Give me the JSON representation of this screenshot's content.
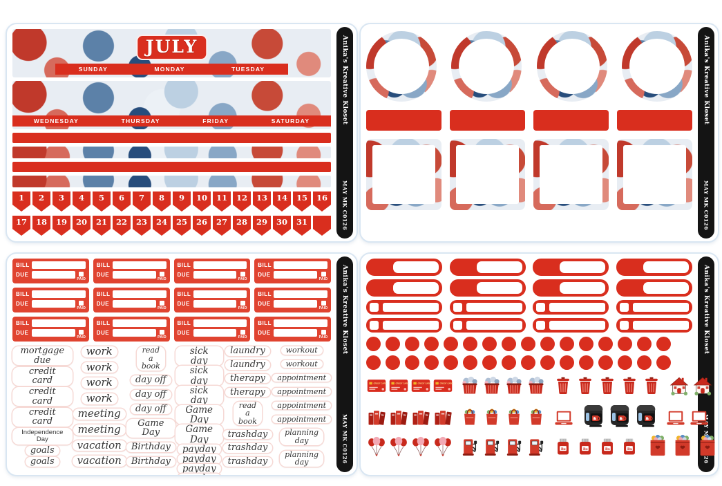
{
  "brand": {
    "shop": "Anika's Kreative Kloset",
    "code": "MAY MK C0126"
  },
  "colors": {
    "accent_red": "#d92e1e",
    "spine_black": "#141414",
    "sheet_border": "#d9e6f2"
  },
  "monthly_sheet": {
    "month_title": "JULY",
    "day_row_1": [
      "SUNDAY",
      "MONDAY",
      "TUESDAY"
    ],
    "day_row_2": [
      "WEDNESDAY",
      "THURSDAY",
      "FRIDAY",
      "SATURDAY"
    ],
    "dates_row_1": [
      "1",
      "2",
      "3",
      "4",
      "5",
      "6",
      "7",
      "8",
      "9",
      "10",
      "11",
      "12",
      "13",
      "14",
      "15",
      "16"
    ],
    "dates_row_2": [
      "17",
      "18",
      "19",
      "20",
      "21",
      "22",
      "23",
      "24",
      "25",
      "26",
      "27",
      "28",
      "29",
      "30",
      "31",
      ""
    ]
  },
  "frames_sheet": {
    "circle_frames": 4,
    "red_label_boxes": 4,
    "square_frames": 4
  },
  "bills_sheet": {
    "bill_label": "BILL",
    "due_label": "DUE",
    "paid_label": "PAID",
    "sticker_count": 12,
    "word_columns": [
      [
        "mortgage due",
        "credit card",
        "credit card",
        "credit card",
        "Independence Day",
        "goals",
        "goals"
      ],
      [
        "work",
        "work",
        "work",
        "work",
        "meeting",
        "meeting",
        "vacation",
        "vacation"
      ],
      [
        "read\na\nbook",
        "day off",
        "day off",
        "day off",
        "Game Day",
        "Birthday",
        "Birthday"
      ],
      [
        "sick day",
        "sick day",
        "sick day",
        "Game Day",
        "Game Day",
        "payday",
        "payday",
        "payday",
        "payday"
      ],
      [
        "laundry",
        "laundry",
        "therapy",
        "therapy",
        "read\na\nbook",
        "trashday",
        "trashday",
        "trashday"
      ],
      [
        "workout",
        "workout",
        "appointment",
        "appointment",
        "appointment",
        "appointment",
        "planning\nday",
        "planning\nday"
      ]
    ]
  },
  "function_sheet": {
    "half_label_rows": 2,
    "half_labels_per_row": 4,
    "checkbox_rows": 2,
    "checkboxes_per_row": 4,
    "dot_rows": 2,
    "dots_per_row": 16,
    "icon_rows": [
      [
        {
          "type": "credit-card",
          "count": 4,
          "label": "CREDIT CARD"
        },
        {
          "type": "laundry-basket",
          "count": 4
        },
        {
          "type": "trash-can",
          "count": 5
        },
        {
          "type": "house",
          "count": 2
        }
      ],
      [
        {
          "type": "books",
          "count": 4
        },
        {
          "type": "grocery-bag",
          "count": 4
        },
        {
          "type": "laptop",
          "count": 1
        },
        {
          "type": "coffee-maker",
          "count": 3
        },
        {
          "type": "laptop",
          "count": 2
        }
      ],
      [
        {
          "type": "balloons",
          "count": 4
        },
        {
          "type": "gas-pump",
          "count": 4
        },
        {
          "type": "medicine-jar",
          "count": 4,
          "label": "Rx"
        },
        {
          "type": "laundry-hamper",
          "count": 3
        }
      ]
    ]
  }
}
